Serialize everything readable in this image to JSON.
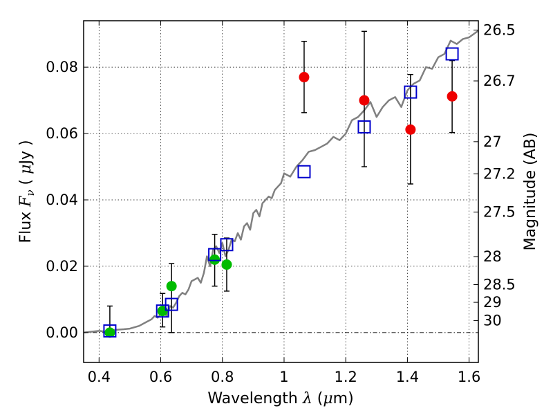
{
  "chart_data": {
    "type": "scatter",
    "xlabel": "Wavelength λ (μm)",
    "ylabel": "Flux F_ν ( μJy )",
    "y2label": "Magnitude (AB)",
    "xlim": [
      0.35,
      1.63
    ],
    "ylim": [
      -0.009,
      0.094
    ],
    "xticks": [
      0.4,
      0.6,
      0.8,
      1.0,
      1.2,
      1.4,
      1.6
    ],
    "xtick_labels": [
      "0.4",
      "0.6",
      "0.8",
      "1",
      "1.2",
      "1.4",
      "1.6"
    ],
    "yticks": [
      0.0,
      0.02,
      0.04,
      0.06,
      0.08
    ],
    "ytick_labels": [
      "0.00",
      "0.02",
      "0.04",
      "0.06",
      "0.08"
    ],
    "y2ticks": [
      {
        "label": "26.5",
        "value": 26.5
      },
      {
        "label": "26.7",
        "value": 26.7
      },
      {
        "label": "27",
        "value": 27.0
      },
      {
        "label": "27.2",
        "value": 27.2
      },
      {
        "label": "27.5",
        "value": 27.5
      },
      {
        "label": "28",
        "value": 28.0
      },
      {
        "label": "28.5",
        "value": 28.5
      },
      {
        "label": "29",
        "value": 29.0
      },
      {
        "label": "30",
        "value": 30.0
      }
    ],
    "grid": true,
    "zero_line": true,
    "colors": {
      "model": "#808080",
      "optical": "#00bb00",
      "nir": "#ee0000",
      "model_phot": "#0000cc",
      "errorbar": "#000000"
    },
    "series": [
      {
        "kind": "model_spectrum",
        "x": [
          0.35,
          0.4,
          0.42,
          0.45,
          0.48,
          0.5,
          0.53,
          0.55,
          0.57,
          0.58,
          0.59,
          0.6,
          0.61,
          0.62,
          0.63,
          0.64,
          0.65,
          0.66,
          0.67,
          0.68,
          0.69,
          0.7,
          0.71,
          0.72,
          0.73,
          0.74,
          0.75,
          0.76,
          0.77,
          0.78,
          0.79,
          0.8,
          0.81,
          0.82,
          0.83,
          0.84,
          0.85,
          0.86,
          0.87,
          0.88,
          0.89,
          0.9,
          0.91,
          0.92,
          0.93,
          0.94,
          0.95,
          0.96,
          0.97,
          0.98,
          0.99,
          1.0,
          1.02,
          1.04,
          1.06,
          1.08,
          1.1,
          1.12,
          1.14,
          1.16,
          1.18,
          1.2,
          1.22,
          1.24,
          1.26,
          1.28,
          1.3,
          1.32,
          1.34,
          1.36,
          1.38,
          1.4,
          1.42,
          1.44,
          1.46,
          1.48,
          1.5,
          1.52,
          1.54,
          1.56,
          1.58,
          1.6,
          1.63
        ],
        "y": [
          0.0,
          0.0005,
          0.0003,
          0.0008,
          0.001,
          0.0012,
          0.002,
          0.003,
          0.004,
          0.005,
          0.0045,
          0.0055,
          0.0058,
          0.005,
          0.008,
          0.0075,
          0.009,
          0.011,
          0.012,
          0.0115,
          0.013,
          0.0155,
          0.016,
          0.0165,
          0.015,
          0.018,
          0.023,
          0.02,
          0.025,
          0.026,
          0.024,
          0.027,
          0.023,
          0.025,
          0.028,
          0.0275,
          0.03,
          0.028,
          0.032,
          0.033,
          0.031,
          0.036,
          0.037,
          0.035,
          0.039,
          0.04,
          0.041,
          0.0405,
          0.043,
          0.044,
          0.045,
          0.048,
          0.047,
          0.05,
          0.052,
          0.0545,
          0.055,
          0.056,
          0.057,
          0.059,
          0.058,
          0.06,
          0.064,
          0.065,
          0.067,
          0.0695,
          0.065,
          0.068,
          0.07,
          0.071,
          0.068,
          0.073,
          0.075,
          0.076,
          0.08,
          0.0795,
          0.083,
          0.084,
          0.088,
          0.087,
          0.0885,
          0.089,
          0.091
        ]
      },
      {
        "kind": "model_photometry",
        "marker": "open-square",
        "x": [
          0.435,
          0.606,
          0.635,
          0.775,
          0.814,
          1.065,
          1.26,
          1.41,
          1.545
        ],
        "y": [
          0.0005,
          0.0065,
          0.0085,
          0.0235,
          0.0265,
          0.0485,
          0.062,
          0.0725,
          0.084
        ]
      },
      {
        "kind": "observed_optical",
        "marker": "filled-circle",
        "x": [
          0.435,
          0.606,
          0.635,
          0.775,
          0.814
        ],
        "y": [
          0.0,
          0.0065,
          0.014,
          0.022,
          0.0205
        ],
        "yerr_low": [
          0.0,
          0.0017,
          0.0,
          0.014,
          0.0125
        ],
        "yerr_high": [
          0.008,
          0.0118,
          0.0208,
          0.0296,
          0.0285
        ]
      },
      {
        "kind": "observed_nir",
        "marker": "filled-circle",
        "x": [
          1.065,
          1.26,
          1.41,
          1.545
        ],
        "y": [
          0.077,
          0.07,
          0.0612,
          0.0712
        ],
        "yerr_low": [
          0.0663,
          0.05,
          0.0448,
          0.0603
        ],
        "yerr_high": [
          0.0878,
          0.0908,
          0.0778,
          0.082
        ]
      }
    ]
  }
}
